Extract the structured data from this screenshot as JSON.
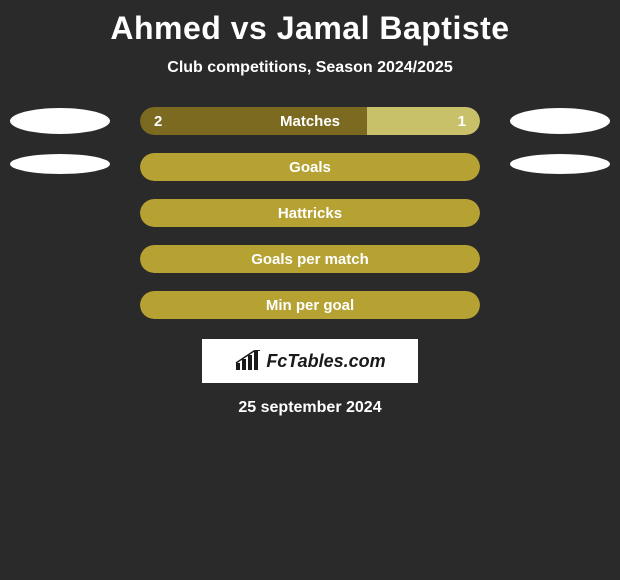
{
  "title": "Ahmed vs Jamal Baptiste",
  "subtitle": "Club competitions, Season 2024/2025",
  "date": "25 september 2024",
  "brand": "FcTables.com",
  "colors": {
    "bg": "#2a2a2a",
    "left_dark": "#7b6a1f",
    "left_light": "#b5a233",
    "right_light": "#c9c06a",
    "right_dark": "#b5a233",
    "avatar": "#ffffff"
  },
  "rows": [
    {
      "label": "Matches",
      "left_value": "2",
      "right_value": "1",
      "left_pct": 66.7,
      "right_pct": 33.3,
      "left_color": "#7b6a1f",
      "right_color": "#c9c06a",
      "show_avatars": true,
      "avatar_size": "big"
    },
    {
      "label": "Goals",
      "left_value": "",
      "right_value": "",
      "left_pct": 50,
      "right_pct": 50,
      "left_color": "#b5a233",
      "right_color": "#b5a233",
      "show_avatars": true,
      "avatar_size": "small"
    },
    {
      "label": "Hattricks",
      "left_value": "",
      "right_value": "",
      "left_pct": 50,
      "right_pct": 50,
      "left_color": "#b5a233",
      "right_color": "#b5a233",
      "show_avatars": false
    },
    {
      "label": "Goals per match",
      "left_value": "",
      "right_value": "",
      "left_pct": 50,
      "right_pct": 50,
      "left_color": "#b5a233",
      "right_color": "#b5a233",
      "show_avatars": false
    },
    {
      "label": "Min per goal",
      "left_value": "",
      "right_value": "",
      "left_pct": 50,
      "right_pct": 50,
      "left_color": "#b5a233",
      "right_color": "#b5a233",
      "show_avatars": false
    }
  ]
}
